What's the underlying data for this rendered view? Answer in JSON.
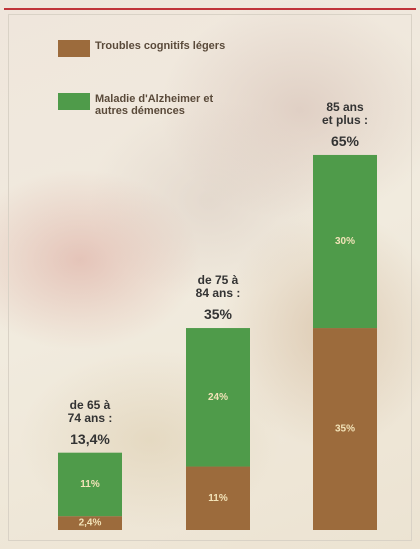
{
  "chart_data": {
    "type": "stacked-bar",
    "categories": [
      "de 65 à 74 ans :",
      "de 75 à 84 ans :",
      "85 ans et plus :"
    ],
    "series": [
      {
        "name": "Troubles cognitifs légers",
        "color": "#9c6b3c",
        "values": [
          2.4,
          11,
          35
        ],
        "value_labels": [
          "2,4%",
          "11%",
          "35%"
        ]
      },
      {
        "name": "Maladie d'Alzheimer et autres démences",
        "color": "#4f9b4a",
        "values": [
          11,
          24,
          30
        ],
        "value_labels": [
          "11%",
          "24%",
          "30%"
        ]
      }
    ],
    "total_values": [
      13.4,
      35,
      65
    ],
    "total_labels": [
      "13,4%",
      "35%",
      "65%"
    ]
  }
}
